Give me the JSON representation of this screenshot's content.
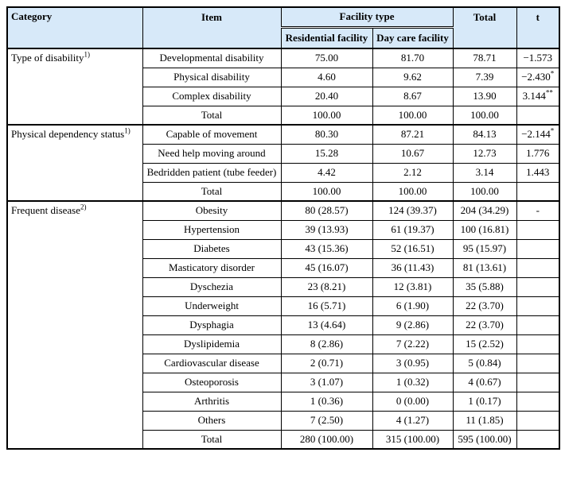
{
  "table": {
    "colors": {
      "header_bg": "#d7e9f9",
      "border": "#000000"
    },
    "headers": {
      "category": "Category",
      "item": "Item",
      "facility_type": "Facility type",
      "residential": "Residential facility",
      "day_care": "Day care facility",
      "total": "Total",
      "t": "t"
    },
    "sections": [
      {
        "category": "Type of disability",
        "category_sup": "1)",
        "rows": [
          {
            "item": "Developmental disability",
            "residential": "75.00",
            "day_care": "81.70",
            "total": "78.71",
            "t": "−1.573",
            "t_sup": ""
          },
          {
            "item": "Physical disability",
            "residential": "4.60",
            "day_care": "9.62",
            "total": "7.39",
            "t": "−2.430",
            "t_sup": "*"
          },
          {
            "item": "Complex disability",
            "residential": "20.40",
            "day_care": "8.67",
            "total": "13.90",
            "t": "3.144",
            "t_sup": "**"
          },
          {
            "item": "Total",
            "residential": "100.00",
            "day_care": "100.00",
            "total": "100.00",
            "t": "",
            "t_sup": ""
          }
        ]
      },
      {
        "category": "Physical dependency status",
        "category_sup": "1)",
        "rows": [
          {
            "item": "Capable of movement",
            "residential": "80.30",
            "day_care": "87.21",
            "total": "84.13",
            "t": "−2.144",
            "t_sup": "*"
          },
          {
            "item": "Need help moving around",
            "residential": "15.28",
            "day_care": "10.67",
            "total": "12.73",
            "t": "1.776",
            "t_sup": ""
          },
          {
            "item": "Bedridden patient (tube feeder)",
            "residential": "4.42",
            "day_care": "2.12",
            "total": "3.14",
            "t": "1.443",
            "t_sup": ""
          },
          {
            "item": "Total",
            "residential": "100.00",
            "day_care": "100.00",
            "total": "100.00",
            "t": "",
            "t_sup": ""
          }
        ]
      },
      {
        "category": "Frequent disease",
        "category_sup": "2)",
        "rows": [
          {
            "item": "Obesity",
            "residential": "80 (28.57)",
            "day_care": "124 (39.37)",
            "total": "204 (34.29)",
            "t": "-",
            "t_sup": ""
          },
          {
            "item": "Hypertension",
            "residential": "39 (13.93)",
            "day_care": "61 (19.37)",
            "total": "100 (16.81)",
            "t": "",
            "t_sup": ""
          },
          {
            "item": "Diabetes",
            "residential": "43 (15.36)",
            "day_care": "52 (16.51)",
            "total": "95 (15.97)",
            "t": "",
            "t_sup": ""
          },
          {
            "item": "Masticatory disorder",
            "residential": "45 (16.07)",
            "day_care": "36 (11.43)",
            "total": "81 (13.61)",
            "t": "",
            "t_sup": ""
          },
          {
            "item": "Dyschezia",
            "residential": "23 (8.21)",
            "day_care": "12 (3.81)",
            "total": "35 (5.88)",
            "t": "",
            "t_sup": ""
          },
          {
            "item": "Underweight",
            "residential": "16 (5.71)",
            "day_care": "6 (1.90)",
            "total": "22 (3.70)",
            "t": "",
            "t_sup": ""
          },
          {
            "item": "Dysphagia",
            "residential": "13 (4.64)",
            "day_care": "9 (2.86)",
            "total": "22 (3.70)",
            "t": "",
            "t_sup": ""
          },
          {
            "item": "Dyslipidemia",
            "residential": "8 (2.86)",
            "day_care": "7 (2.22)",
            "total": "15 (2.52)",
            "t": "",
            "t_sup": ""
          },
          {
            "item": "Cardiovascular disease",
            "residential": "2 (0.71)",
            "day_care": "3 (0.95)",
            "total": "5 (0.84)",
            "t": "",
            "t_sup": ""
          },
          {
            "item": "Osteoporosis",
            "residential": "3 (1.07)",
            "day_care": "1 (0.32)",
            "total": "4 (0.67)",
            "t": "",
            "t_sup": ""
          },
          {
            "item": "Arthritis",
            "residential": "1 (0.36)",
            "day_care": "0 (0.00)",
            "total": "1 (0.17)",
            "t": "",
            "t_sup": ""
          },
          {
            "item": "Others",
            "residential": "7 (2.50)",
            "day_care": "4 (1.27)",
            "total": "11 (1.85)",
            "t": "",
            "t_sup": ""
          },
          {
            "item": "Total",
            "residential": "280 (100.00)",
            "day_care": "315 (100.00)",
            "total": "595 (100.00)",
            "t": "",
            "t_sup": ""
          }
        ]
      }
    ]
  }
}
